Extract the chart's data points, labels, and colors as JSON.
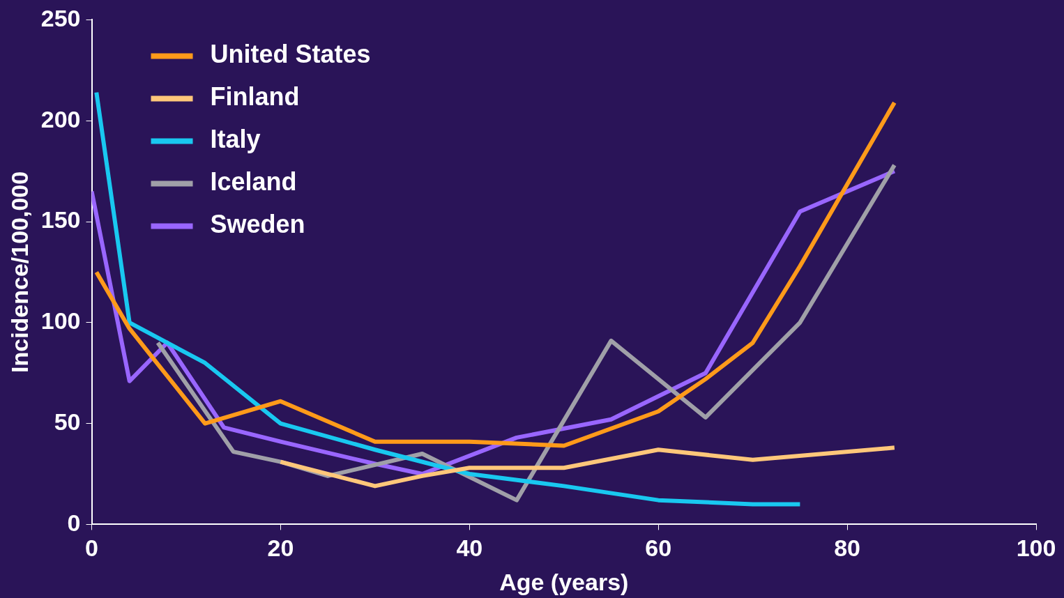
{
  "chart_data": {
    "type": "line",
    "xlabel": "Age (years)",
    "ylabel": "Incidence/100,000",
    "xlim": [
      0,
      100
    ],
    "xticks": [
      0,
      20,
      40,
      60,
      80,
      100
    ],
    "ylim": [
      0,
      250
    ],
    "yticks": [
      0,
      50,
      100,
      150,
      200,
      250
    ],
    "grid": false,
    "legend": "top left",
    "marker": "none",
    "line_style": "solid",
    "series": [
      {
        "name": "United States",
        "color": "#ff9a1a",
        "x": [
          0.5,
          4,
          12,
          20,
          30,
          40,
          45,
          50,
          60,
          65,
          70,
          75,
          85
        ],
        "values": [
          125,
          97,
          50,
          61,
          41,
          41,
          40,
          39,
          56,
          72,
          90,
          128,
          209
        ]
      },
      {
        "name": "Finland",
        "color": "#ffc77a",
        "x": [
          20,
          30,
          35,
          40,
          50,
          60,
          70,
          85
        ],
        "values": [
          31,
          19,
          24,
          28,
          28,
          37,
          32,
          38
        ]
      },
      {
        "name": "Italy",
        "color": "#19c8f0",
        "x": [
          0.5,
          4,
          12,
          20,
          30,
          40,
          50,
          60,
          70,
          75
        ],
        "values": [
          214,
          100,
          80,
          50,
          37,
          25,
          19,
          12,
          10,
          10
        ]
      },
      {
        "name": "Iceland",
        "color": "#a0a0a8",
        "x": [
          7,
          15,
          20,
          25,
          35,
          45,
          55,
          65,
          75,
          85
        ],
        "values": [
          90,
          36,
          31,
          24,
          35,
          12,
          91,
          53,
          100,
          178
        ]
      },
      {
        "name": "Sweden",
        "color": "#9966ff",
        "x": [
          0,
          4,
          8,
          14,
          20,
          30,
          35,
          45,
          55,
          65,
          75,
          85
        ],
        "values": [
          165,
          71,
          90,
          48,
          41,
          30,
          25,
          43,
          52,
          75,
          155,
          175
        ]
      }
    ]
  }
}
